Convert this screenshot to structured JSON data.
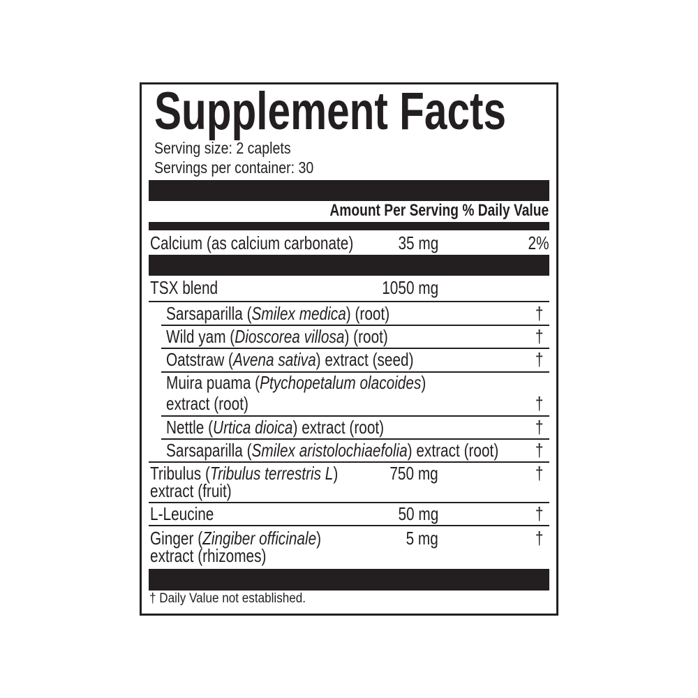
{
  "title": "Supplement Facts",
  "serving_size": "Serving size: 2 caplets",
  "servings_per_container": "Servings per container: 30",
  "header": "Amount Per Serving % Daily Value",
  "calcium": {
    "name": "Calcium (as calcium carbonate)",
    "amount": "35  mg",
    "dv": "2%"
  },
  "blend": {
    "name": "TSX blend",
    "amount": "1050 mg"
  },
  "blend_items": [
    {
      "pre": "Sarsaparilla (",
      "latin": "Smilex medica",
      "post": ") (root)",
      "dv": "†"
    },
    {
      "pre": "Wild yam (",
      "latin": "Dioscorea villosa",
      "post": ") (root)",
      "dv": "†"
    },
    {
      "pre": "Oatstraw (",
      "latin": "Avena sativa",
      "post": ") extract (seed)",
      "dv": "†"
    },
    {
      "pre": "Muira puama (",
      "latin": "Ptychopetalum olacoides",
      "post": ")",
      "line2": "extract (root)",
      "dv": "†"
    },
    {
      "pre": "Nettle (",
      "latin": "Urtica dioica",
      "post": ") extract (root)",
      "dv": "†"
    },
    {
      "pre": "Sarsaparilla (",
      "latin": "Smilex aristolochiaefolia",
      "post": ") extract (root)",
      "dv": "†"
    }
  ],
  "others": [
    {
      "pre": "Tribulus (",
      "latin": "Tribulus terrestris L",
      "post": ")",
      "line2": "extract (fruit)",
      "amount": "750 mg",
      "dv": "†"
    },
    {
      "pre": "L-Leucine",
      "latin": "",
      "post": "",
      "amount": "50 mg",
      "dv": "†"
    },
    {
      "pre": "Ginger (",
      "latin": "Zingiber officinale",
      "post": ")",
      "line2": "extract (rhizomes)",
      "amount": "5 mg",
      "dv": "†"
    }
  ],
  "footnote": "† Daily Value not established."
}
